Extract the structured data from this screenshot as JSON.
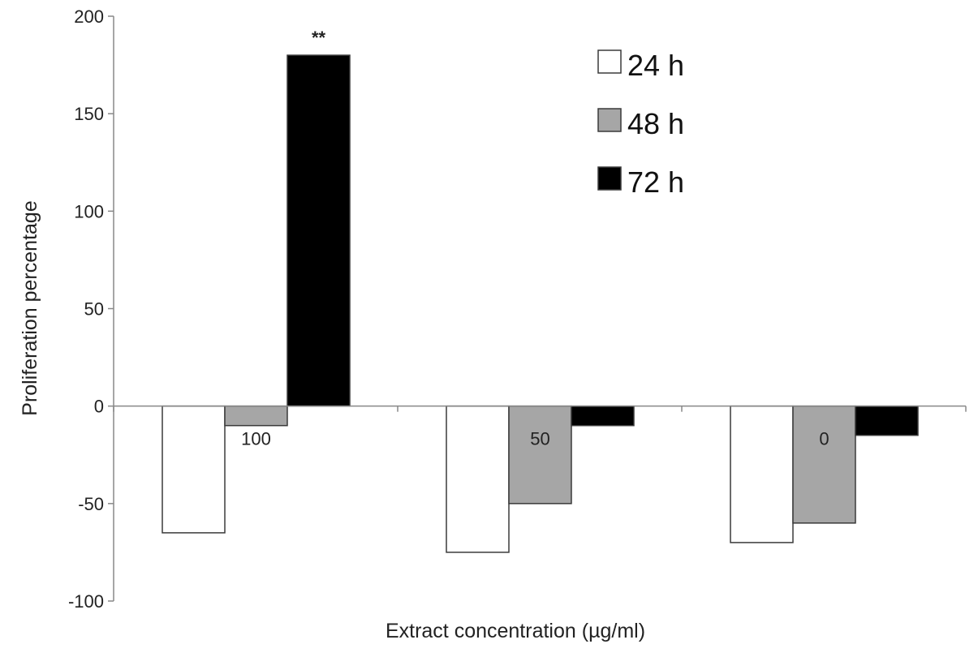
{
  "chart_data": {
    "type": "bar",
    "title": "",
    "xlabel": "Extract concentration  (µg/ml)",
    "ylabel": "Proliferation percentage",
    "ylim": [
      -100,
      200
    ],
    "yticks": [
      -100,
      -50,
      0,
      50,
      100,
      150,
      200
    ],
    "grid": false,
    "legend_position": "top-right",
    "categories": [
      "100",
      "50",
      "0"
    ],
    "series": [
      {
        "name": "24 h",
        "color": "#ffffff",
        "values": [
          -65,
          -75,
          -70
        ]
      },
      {
        "name": "48 h",
        "color": "#a6a6a6",
        "values": [
          -10,
          -50,
          -60
        ]
      },
      {
        "name": "72 h",
        "color": "#000000",
        "values": [
          180,
          -10,
          -15
        ]
      }
    ],
    "annotations": [
      {
        "text": "**",
        "category": "100",
        "series": "72 h"
      }
    ]
  }
}
